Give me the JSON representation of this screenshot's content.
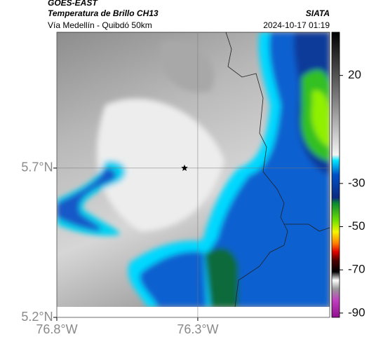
{
  "header": {
    "title": "GOES-EAST",
    "subtitle": "Temperatura de Brillo CH13",
    "source": "SIATA",
    "route": "Vía Medellín - Quibdó 50km",
    "timestamp": "2024-10-17 01:19"
  },
  "map": {
    "xlim": [
      -76.8,
      -75.832
    ],
    "ylim": [
      5.2,
      6.155
    ],
    "xticks": [
      {
        "value": -76.8,
        "label": "76.8°W"
      },
      {
        "value": -76.3,
        "label": "76.3°W"
      }
    ],
    "yticks": [
      {
        "value": 5.2,
        "label": "5.2°N"
      },
      {
        "value": 5.7,
        "label": "5.7°N"
      }
    ],
    "marker": {
      "lon": -76.347,
      "lat": 5.7
    }
  },
  "colorbar": {
    "lim": [
      -92,
      40
    ],
    "ticks": [
      20,
      -30,
      -50,
      -70,
      -90
    ]
  }
}
